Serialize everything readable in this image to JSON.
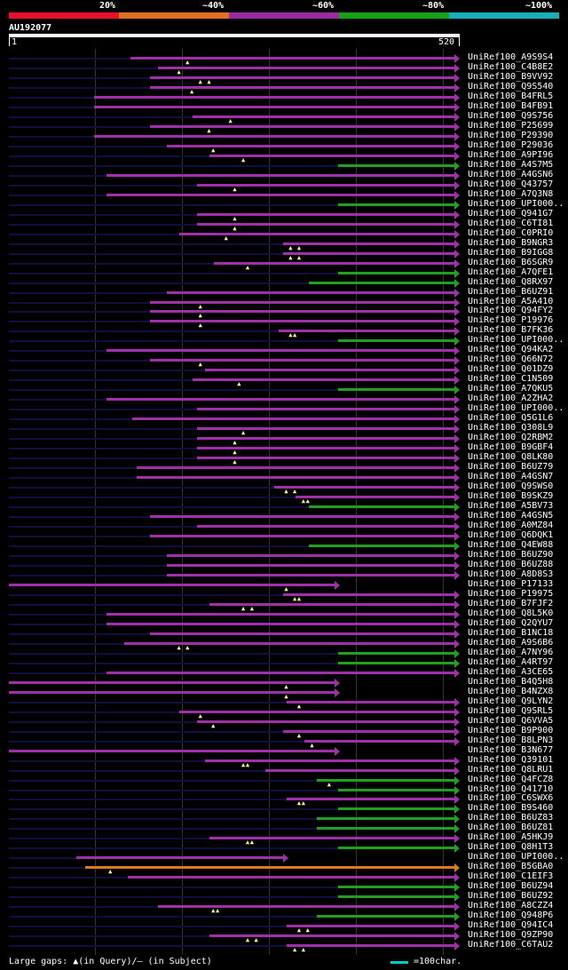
{
  "legend": [
    {
      "label": "20%",
      "color": "#e8102a"
    },
    {
      "label": "~40%",
      "color": "#e07020"
    },
    {
      "label": "~60%",
      "color": "#9a2aa0"
    },
    {
      "label": "~80%",
      "color": "#18a018"
    },
    {
      "label": "~100%",
      "color": "#18b0b8"
    }
  ],
  "query": {
    "id": "AU192077",
    "start": "1",
    "end": "520",
    "length": 520
  },
  "hits": [
    {
      "name": "UniRef100_A9S9S4",
      "s": 143,
      "e": 520,
      "c": "p",
      "g": [
        210
      ]
    },
    {
      "name": "UniRef100_C4B8E2",
      "s": 175,
      "e": 520,
      "c": "p",
      "g": [
        200
      ]
    },
    {
      "name": "UniRef100_B9VV92",
      "s": 165,
      "e": 520,
      "c": "p",
      "g": [
        225,
        235
      ]
    },
    {
      "name": "UniRef100_Q9S540",
      "s": 165,
      "e": 520,
      "c": "p",
      "g": [
        215
      ]
    },
    {
      "name": "UniRef100_B4FRL5",
      "s": 100,
      "e": 520,
      "c": "p",
      "g": []
    },
    {
      "name": "UniRef100_B4FB91",
      "s": 100,
      "e": 520,
      "c": "p",
      "g": []
    },
    {
      "name": "UniRef100_Q9S756",
      "s": 215,
      "e": 520,
      "c": "p",
      "g": [
        260
      ]
    },
    {
      "name": "UniRef100_P25699",
      "s": 165,
      "e": 520,
      "c": "p",
      "g": [
        235
      ]
    },
    {
      "name": "UniRef100_P29390",
      "s": 100,
      "e": 520,
      "c": "p",
      "g": []
    },
    {
      "name": "UniRef100_P29036",
      "s": 185,
      "e": 520,
      "c": "p",
      "g": [
        240
      ]
    },
    {
      "name": "UniRef100_A9PI96",
      "s": 235,
      "e": 520,
      "c": "p",
      "g": [
        275
      ]
    },
    {
      "name": "UniRef100_A4S7M5",
      "s": 385,
      "e": 520,
      "c": "g",
      "g": []
    },
    {
      "name": "UniRef100_A4GSN6",
      "s": 115,
      "e": 520,
      "c": "p",
      "g": []
    },
    {
      "name": "UniRef100_Q43757",
      "s": 220,
      "e": 520,
      "c": "p",
      "g": [
        265
      ]
    },
    {
      "name": "UniRef100_A7Q3N8",
      "s": 115,
      "e": 520,
      "c": "p",
      "g": []
    },
    {
      "name": "UniRef100_UPI000..",
      "s": 385,
      "e": 520,
      "c": "g",
      "g": []
    },
    {
      "name": "UniRef100_Q941G7",
      "s": 220,
      "e": 520,
      "c": "p",
      "g": [
        265
      ]
    },
    {
      "name": "UniRef100_C6TI81",
      "s": 220,
      "e": 520,
      "c": "p",
      "g": [
        265
      ]
    },
    {
      "name": "UniRef100_C0PRI0",
      "s": 200,
      "e": 520,
      "c": "p",
      "g": [
        255
      ]
    },
    {
      "name": "UniRef100_B9NGR3",
      "s": 320,
      "e": 520,
      "c": "p",
      "g": [
        330,
        340
      ]
    },
    {
      "name": "UniRef100_B9IGG8",
      "s": 320,
      "e": 520,
      "c": "p",
      "g": [
        330,
        340
      ]
    },
    {
      "name": "UniRef100_B6SGR9",
      "s": 240,
      "e": 520,
      "c": "p",
      "g": [
        280
      ]
    },
    {
      "name": "UniRef100_A7QFE1",
      "s": 385,
      "e": 520,
      "c": "g",
      "g": []
    },
    {
      "name": "UniRef100_Q8RX97",
      "s": 350,
      "e": 520,
      "c": "g",
      "g": []
    },
    {
      "name": "UniRef100_B6UZ91",
      "s": 185,
      "e": 520,
      "c": "p",
      "g": []
    },
    {
      "name": "UniRef100_A5A410",
      "s": 165,
      "e": 520,
      "c": "p",
      "g": [
        225
      ]
    },
    {
      "name": "UniRef100_Q94FY2",
      "s": 165,
      "e": 520,
      "c": "p",
      "g": [
        225
      ]
    },
    {
      "name": "UniRef100_P19976",
      "s": 165,
      "e": 520,
      "c": "p",
      "g": [
        225
      ]
    },
    {
      "name": "UniRef100_B7FK36",
      "s": 315,
      "e": 520,
      "c": "p",
      "g": [
        330,
        335
      ]
    },
    {
      "name": "UniRef100_UPI000..",
      "s": 385,
      "e": 520,
      "c": "g",
      "g": []
    },
    {
      "name": "UniRef100_Q94KA2",
      "s": 115,
      "e": 520,
      "c": "p",
      "g": []
    },
    {
      "name": "UniRef100_Q66N72",
      "s": 165,
      "e": 520,
      "c": "p",
      "g": [
        225
      ]
    },
    {
      "name": "UniRef100_Q01DZ9",
      "s": 230,
      "e": 520,
      "c": "p",
      "g": []
    },
    {
      "name": "UniRef100_C1N509",
      "s": 215,
      "e": 520,
      "c": "p",
      "g": [
        270
      ]
    },
    {
      "name": "UniRef100_A7QKU5",
      "s": 385,
      "e": 520,
      "c": "g",
      "g": []
    },
    {
      "name": "UniRef100_A2ZHA2",
      "s": 115,
      "e": 520,
      "c": "p",
      "g": []
    },
    {
      "name": "UniRef100_UPI000..",
      "s": 220,
      "e": 520,
      "c": "p",
      "g": []
    },
    {
      "name": "UniRef100_Q5G1L6",
      "s": 145,
      "e": 520,
      "c": "p",
      "g": []
    },
    {
      "name": "UniRef100_Q308L9",
      "s": 220,
      "e": 520,
      "c": "p",
      "g": [
        275
      ]
    },
    {
      "name": "UniRef100_Q2RBM2",
      "s": 220,
      "e": 520,
      "c": "p",
      "g": [
        265
      ]
    },
    {
      "name": "UniRef100_B9GBF4",
      "s": 220,
      "e": 520,
      "c": "p",
      "g": [
        265
      ]
    },
    {
      "name": "UniRef100_Q8LK80",
      "s": 220,
      "e": 520,
      "c": "p",
      "g": [
        265
      ]
    },
    {
      "name": "UniRef100_B6UZ79",
      "s": 150,
      "e": 520,
      "c": "p",
      "g": []
    },
    {
      "name": "UniRef100_A4GSN7",
      "s": 150,
      "e": 520,
      "c": "p",
      "g": []
    },
    {
      "name": "UniRef100_Q9SWS0",
      "s": 310,
      "e": 520,
      "c": "p",
      "g": [
        325,
        335
      ]
    },
    {
      "name": "UniRef100_B9SKZ9",
      "s": 335,
      "e": 520,
      "c": "p",
      "g": [
        345,
        350
      ]
    },
    {
      "name": "UniRef100_A5BV73",
      "s": 350,
      "e": 520,
      "c": "g",
      "g": []
    },
    {
      "name": "UniRef100_A4GSN5",
      "s": 165,
      "e": 520,
      "c": "p",
      "g": []
    },
    {
      "name": "UniRef100_A0MZ84",
      "s": 220,
      "e": 520,
      "c": "p",
      "g": []
    },
    {
      "name": "UniRef100_Q6DQK1",
      "s": 165,
      "e": 520,
      "c": "p",
      "g": []
    },
    {
      "name": "UniRef100_Q4EW88",
      "s": 350,
      "e": 520,
      "c": "g",
      "g": []
    },
    {
      "name": "UniRef100_B6UZ90",
      "s": 185,
      "e": 520,
      "c": "p",
      "g": []
    },
    {
      "name": "UniRef100_B6UZ88",
      "s": 185,
      "e": 520,
      "c": "p",
      "g": []
    },
    {
      "name": "UniRef100_A8D8S3",
      "s": 185,
      "e": 520,
      "c": "p",
      "g": []
    },
    {
      "name": "UniRef100_P17133",
      "s": 1,
      "e": 380,
      "c": "p",
      "g": [
        325
      ]
    },
    {
      "name": "UniRef100_P19975",
      "s": 320,
      "e": 520,
      "c": "p",
      "g": [
        335,
        340
      ]
    },
    {
      "name": "UniRef100_B7FJF2",
      "s": 235,
      "e": 520,
      "c": "p",
      "g": [
        275,
        285
      ]
    },
    {
      "name": "UniRef100_Q8L5K0",
      "s": 115,
      "e": 520,
      "c": "p",
      "g": []
    },
    {
      "name": "UniRef100_Q2QYU7",
      "s": 115,
      "e": 520,
      "c": "p",
      "g": []
    },
    {
      "name": "UniRef100_B1NC18",
      "s": 165,
      "e": 520,
      "c": "p",
      "g": []
    },
    {
      "name": "UniRef100_A9S6B6",
      "s": 135,
      "e": 520,
      "c": "p",
      "g": [
        200,
        210
      ]
    },
    {
      "name": "UniRef100_A7NY96",
      "s": 385,
      "e": 520,
      "c": "g",
      "g": []
    },
    {
      "name": "UniRef100_A4RT97",
      "s": 385,
      "e": 520,
      "c": "g",
      "g": []
    },
    {
      "name": "UniRef100_A3CE65",
      "s": 115,
      "e": 520,
      "c": "p",
      "g": []
    },
    {
      "name": "UniRef100_B4Q5H8",
      "s": 1,
      "e": 380,
      "c": "p",
      "g": [
        325
      ]
    },
    {
      "name": "UniRef100_B4NZX8",
      "s": 1,
      "e": 380,
      "c": "p",
      "g": [
        325
      ]
    },
    {
      "name": "UniRef100_Q9LYN2",
      "s": 325,
      "e": 520,
      "c": "p",
      "g": [
        340
      ]
    },
    {
      "name": "UniRef100_Q9SRL5",
      "s": 200,
      "e": 520,
      "c": "p",
      "g": [
        225
      ]
    },
    {
      "name": "UniRef100_Q6VVA5",
      "s": 220,
      "e": 520,
      "c": "p",
      "g": [
        240
      ]
    },
    {
      "name": "UniRef100_B9P900",
      "s": 320,
      "e": 520,
      "c": "p",
      "g": [
        340
      ]
    },
    {
      "name": "UniRef100_B8LPN3",
      "s": 345,
      "e": 520,
      "c": "p",
      "g": [
        355
      ]
    },
    {
      "name": "UniRef100_B3N677",
      "s": 1,
      "e": 380,
      "c": "p",
      "g": []
    },
    {
      "name": "UniRef100_Q39101",
      "s": 230,
      "e": 520,
      "c": "p",
      "g": [
        275,
        280
      ]
    },
    {
      "name": "UniRef100_Q8LRU1",
      "s": 300,
      "e": 520,
      "c": "p",
      "g": []
    },
    {
      "name": "UniRef100_Q4FCZ8",
      "s": 360,
      "e": 520,
      "c": "g",
      "g": [
        375
      ]
    },
    {
      "name": "UniRef100_Q41710",
      "s": 385,
      "e": 520,
      "c": "g",
      "g": []
    },
    {
      "name": "UniRef100_C6SWX6",
      "s": 325,
      "e": 520,
      "c": "p",
      "g": [
        340,
        345
      ]
    },
    {
      "name": "UniRef100_B9S460",
      "s": 385,
      "e": 520,
      "c": "g",
      "g": []
    },
    {
      "name": "UniRef100_B6UZ83",
      "s": 360,
      "e": 520,
      "c": "g",
      "g": []
    },
    {
      "name": "UniRef100_B6UZ81",
      "s": 360,
      "e": 520,
      "c": "g",
      "g": []
    },
    {
      "name": "UniRef100_A5HKJ9",
      "s": 235,
      "e": 520,
      "c": "p",
      "g": [
        280,
        285
      ]
    },
    {
      "name": "UniRef100_Q8H1T3",
      "s": 385,
      "e": 520,
      "c": "g",
      "g": []
    },
    {
      "name": "UniRef100_UPI000..",
      "s": 80,
      "e": 320,
      "c": "p",
      "g": []
    },
    {
      "name": "UniRef100_B5GBA0",
      "s": 90,
      "e": 520,
      "c": "o",
      "g": [
        120
      ]
    },
    {
      "name": "UniRef100_C1EIF3",
      "s": 140,
      "e": 520,
      "c": "p",
      "g": []
    },
    {
      "name": "UniRef100_B6UZ94",
      "s": 385,
      "e": 520,
      "c": "g",
      "g": []
    },
    {
      "name": "UniRef100_B6UZ92",
      "s": 385,
      "e": 520,
      "c": "g",
      "g": []
    },
    {
      "name": "UniRef100_A8CZZ4",
      "s": 175,
      "e": 520,
      "c": "p",
      "g": [
        240,
        245
      ]
    },
    {
      "name": "UniRef100_Q948P6",
      "s": 360,
      "e": 520,
      "c": "g",
      "g": []
    },
    {
      "name": "UniRef100_Q94IC4",
      "s": 325,
      "e": 520,
      "c": "p",
      "g": [
        340,
        350
      ]
    },
    {
      "name": "UniRef100_Q9ZP90",
      "s": 235,
      "e": 520,
      "c": "p",
      "g": [
        280,
        290
      ]
    },
    {
      "name": "UniRef100_C6TAU2",
      "s": 325,
      "e": 520,
      "c": "p",
      "g": [
        335,
        345
      ]
    }
  ],
  "footer": {
    "gaps_label": "Large gaps: ▲(in Query)/— (in Subject)",
    "scale_label": "=100char."
  }
}
